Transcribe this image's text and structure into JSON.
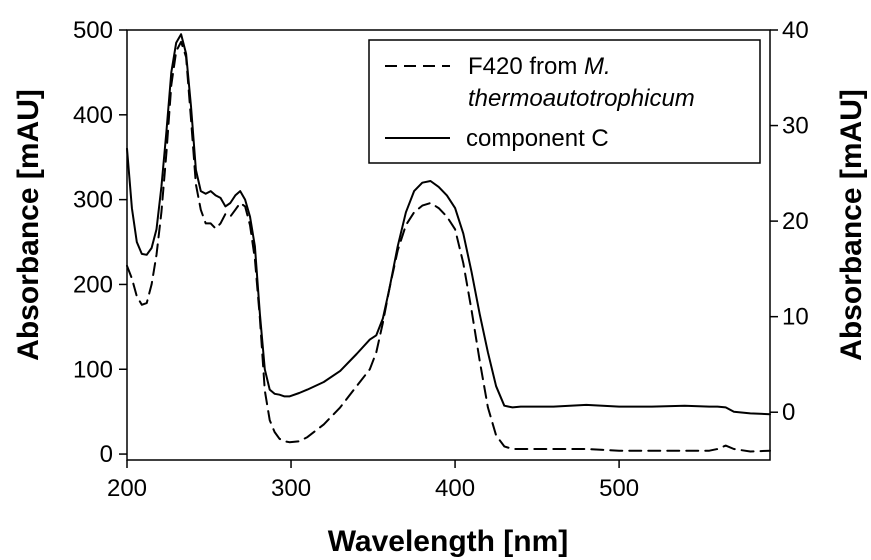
{
  "chart_data": {
    "type": "line",
    "title": "",
    "xlabel": "Wavelength [nm]",
    "ylabel_left": "Absorbance [mAU]",
    "ylabel_right": "Absorbance [mAU]",
    "xlim": [
      200,
      592
    ],
    "ylim_left": [
      -7,
      500
    ],
    "ylim_right": [
      -5,
      40
    ],
    "xticks": [
      "200",
      "300",
      "400",
      "500"
    ],
    "yticks_left": [
      "0",
      "100",
      "200",
      "300",
      "400",
      "500"
    ],
    "yticks_right": [
      "0",
      "10",
      "20",
      "30",
      "40"
    ],
    "grid": false,
    "legend_position": "top-right",
    "legend": [
      {
        "prefix": "F420 from ",
        "italic": "M.",
        "italic_line2": "thermoautotrophicum",
        "style": "dashed"
      },
      {
        "prefix": "component C",
        "italic": "",
        "italic_line2": "",
        "style": "solid"
      }
    ],
    "series": [
      {
        "style": "dashed",
        "axis": "left",
        "x": [
          200,
          203,
          206,
          209,
          212,
          215,
          218,
          221,
          224,
          227,
          230,
          233,
          236,
          239,
          242,
          245,
          248,
          251,
          254,
          257,
          260,
          263,
          266,
          269,
          272,
          275,
          278,
          281,
          284,
          287,
          290,
          293,
          296,
          299,
          305,
          310,
          320,
          330,
          340,
          348,
          352,
          356,
          360,
          365,
          370,
          375,
          380,
          385,
          390,
          395,
          400,
          405,
          410,
          415,
          420,
          425,
          430,
          435,
          440,
          460,
          480,
          500,
          520,
          540,
          555,
          560,
          565,
          570,
          580,
          592
        ],
        "y": [
          222,
          207,
          186,
          176,
          178,
          200,
          235,
          285,
          355,
          435,
          475,
          486,
          468,
          395,
          318,
          288,
          272,
          272,
          266,
          272,
          283,
          280,
          288,
          296,
          292,
          270,
          230,
          160,
          75,
          40,
          26,
          18,
          15,
          14,
          15,
          20,
          35,
          55,
          80,
          100,
          120,
          155,
          195,
          240,
          270,
          285,
          293,
          296,
          290,
          280,
          265,
          225,
          170,
          110,
          55,
          22,
          9,
          6,
          6,
          6,
          6,
          4,
          4,
          4,
          4,
          6,
          10,
          6,
          3,
          4
        ]
      },
      {
        "style": "solid",
        "axis": "left",
        "x": [
          200,
          203,
          206,
          209,
          212,
          215,
          218,
          221,
          224,
          227,
          230,
          233,
          236,
          239,
          242,
          245,
          248,
          251,
          254,
          257,
          260,
          263,
          266,
          269,
          272,
          275,
          278,
          281,
          284,
          287,
          290,
          293,
          296,
          299,
          305,
          310,
          320,
          330,
          340,
          348,
          352,
          356,
          360,
          365,
          370,
          375,
          380,
          385,
          390,
          395,
          400,
          405,
          410,
          415,
          420,
          425,
          430,
          435,
          440,
          460,
          480,
          500,
          520,
          540,
          555,
          560,
          565,
          570,
          580,
          592
        ],
        "y": [
          360,
          290,
          250,
          236,
          235,
          243,
          265,
          315,
          380,
          450,
          485,
          495,
          472,
          410,
          335,
          310,
          307,
          310,
          305,
          302,
          292,
          296,
          305,
          310,
          300,
          280,
          245,
          165,
          100,
          76,
          71,
          70,
          68,
          68,
          72,
          76,
          85,
          98,
          118,
          135,
          140,
          160,
          195,
          245,
          285,
          310,
          320,
          322,
          315,
          305,
          290,
          260,
          215,
          165,
          120,
          80,
          57,
          55,
          56,
          56,
          58,
          56,
          56,
          57,
          56,
          56,
          55,
          50,
          48,
          47
        ]
      }
    ]
  }
}
